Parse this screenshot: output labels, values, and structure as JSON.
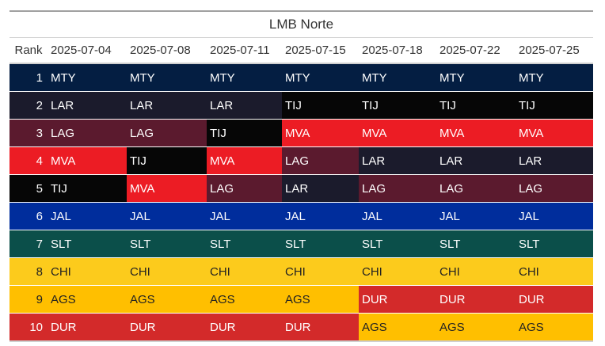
{
  "title": "LMB Norte",
  "rank_header": "Rank",
  "dates": [
    "2025-07-04",
    "2025-07-08",
    "2025-07-11",
    "2025-07-15",
    "2025-07-18",
    "2025-07-22",
    "2025-07-25"
  ],
  "teams": {
    "MTY": {
      "bg": "#041e42",
      "fg": "#ffffff"
    },
    "LAR": {
      "bg": "#1b1b2c",
      "fg": "#ffffff"
    },
    "TIJ": {
      "bg": "#060606",
      "fg": "#ffffff"
    },
    "LAG": {
      "bg": "#5b1a2e",
      "fg": "#ffffff"
    },
    "MVA": {
      "bg": "#ec1c24",
      "fg": "#ffffff"
    },
    "JAL": {
      "bg": "#002d9c",
      "fg": "#ffffff"
    },
    "SLT": {
      "bg": "#0b4f4a",
      "fg": "#ffffff"
    },
    "CHI": {
      "bg": "#fccb1c",
      "fg": "#222222"
    },
    "AGS": {
      "bg": "#ffbf00",
      "fg": "#222222"
    },
    "DUR": {
      "bg": "#d32a2a",
      "fg": "#ffffff"
    }
  },
  "rows": [
    {
      "rank": "1",
      "teams": [
        "MTY",
        "MTY",
        "MTY",
        "MTY",
        "MTY",
        "MTY",
        "MTY"
      ]
    },
    {
      "rank": "2",
      "teams": [
        "LAR",
        "LAR",
        "LAR",
        "TIJ",
        "TIJ",
        "TIJ",
        "TIJ"
      ]
    },
    {
      "rank": "3",
      "teams": [
        "LAG",
        "LAG",
        "TIJ",
        "MVA",
        "MVA",
        "MVA",
        "MVA"
      ]
    },
    {
      "rank": "4",
      "teams": [
        "MVA",
        "TIJ",
        "MVA",
        "LAG",
        "LAR",
        "LAR",
        "LAR"
      ]
    },
    {
      "rank": "5",
      "teams": [
        "TIJ",
        "MVA",
        "LAG",
        "LAR",
        "LAG",
        "LAG",
        "LAG"
      ]
    },
    {
      "rank": "6",
      "teams": [
        "JAL",
        "JAL",
        "JAL",
        "JAL",
        "JAL",
        "JAL",
        "JAL"
      ]
    },
    {
      "rank": "7",
      "teams": [
        "SLT",
        "SLT",
        "SLT",
        "SLT",
        "SLT",
        "SLT",
        "SLT"
      ]
    },
    {
      "rank": "8",
      "teams": [
        "CHI",
        "CHI",
        "CHI",
        "CHI",
        "CHI",
        "CHI",
        "CHI"
      ]
    },
    {
      "rank": "9",
      "teams": [
        "AGS",
        "AGS",
        "AGS",
        "AGS",
        "DUR",
        "DUR",
        "DUR"
      ]
    },
    {
      "rank": "10",
      "teams": [
        "DUR",
        "DUR",
        "DUR",
        "DUR",
        "AGS",
        "AGS",
        "AGS"
      ]
    }
  ]
}
